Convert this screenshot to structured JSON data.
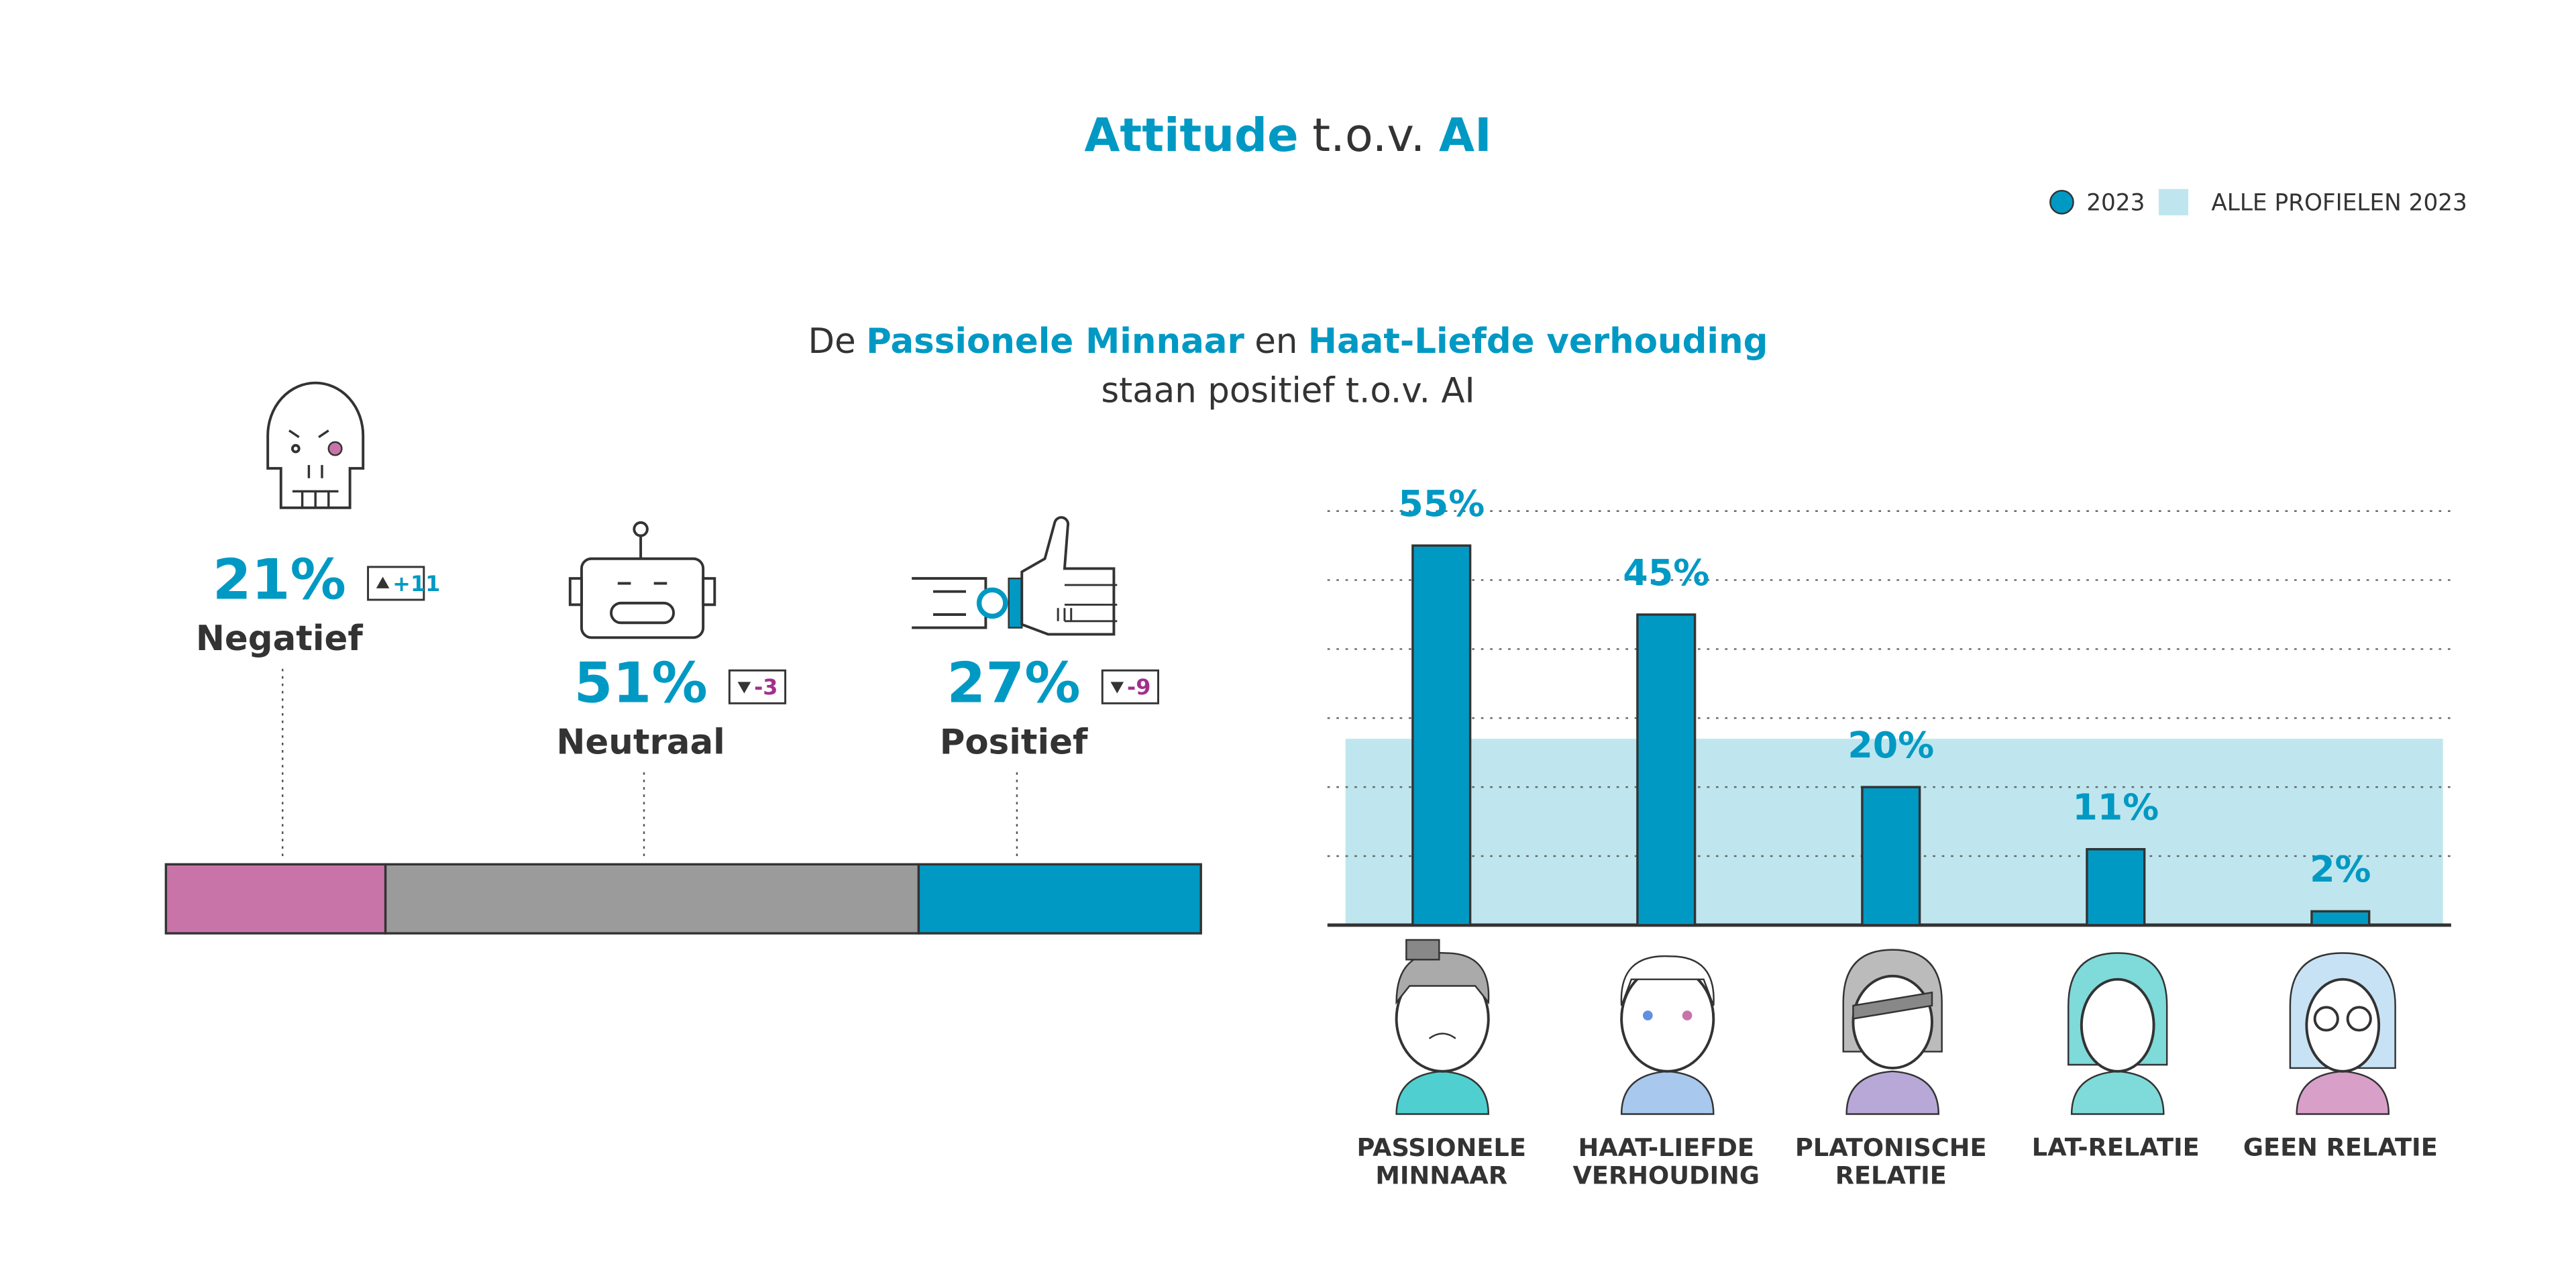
{
  "title_parts": [
    "Attitude",
    "t.o.v.",
    "AI"
  ],
  "chart_data": [
    {
      "type": "stacked_hbar",
      "categories": [
        "Negatief",
        "Neutraal",
        "Positief"
      ],
      "values": [
        21,
        51,
        27
      ],
      "value_labels": [
        "21%",
        "51%",
        "27%"
      ],
      "changes": [
        11,
        -3,
        -9
      ],
      "change_labels": [
        "+11",
        "-3",
        "-9"
      ],
      "colors": [
        "#c874a8",
        "#9b9b9b",
        "#0099c4"
      ]
    },
    {
      "type": "bar",
      "subtitle_parts": [
        "De",
        "Passionele Minnaar",
        "en",
        "Haat-Liefde verhouding"
      ],
      "subtitle_line2": "staan positief t.o.v. AI",
      "categories": [
        "PASSIONELE\nMINNAAR",
        "HAAT-LIEFDE\nVERHOUDING",
        "PLATONISCHE\nRELATIE",
        "LAT-RELATIE",
        "GEEN RELATIE"
      ],
      "series": [
        {
          "name": "2023",
          "color": "#0099c4",
          "values": [
            55,
            45,
            20,
            11,
            2
          ],
          "value_labels": [
            "55%",
            "45%",
            "20%",
            "11%",
            "2%"
          ]
        }
      ],
      "reference": {
        "name": "ALLE PROFIELEN 2023",
        "color": "#bfe6ee",
        "value": 27
      },
      "ylim": [
        0,
        60
      ],
      "yticks": [
        0,
        10,
        20,
        30,
        40,
        50,
        60
      ],
      "grid": true,
      "legend": "top-right"
    }
  ]
}
